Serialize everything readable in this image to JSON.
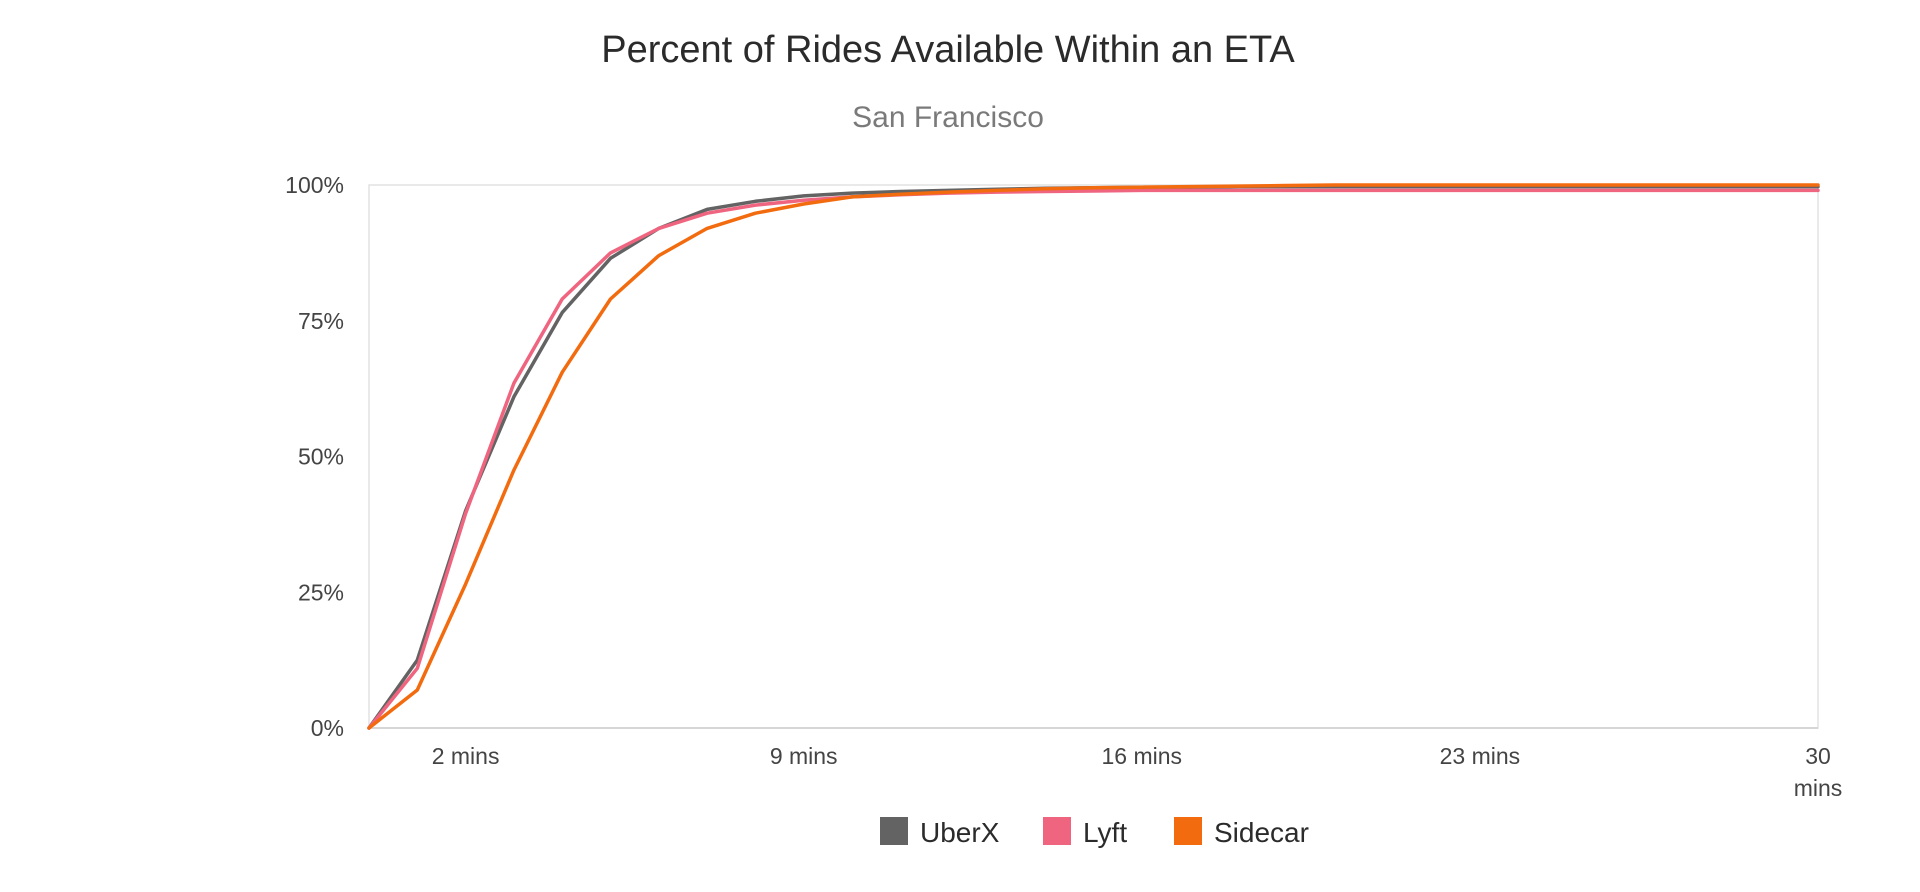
{
  "chart_data": {
    "type": "line",
    "title": "Percent of Rides Available Within an ETA",
    "subtitle": "San Francisco",
    "xlabel": "",
    "ylabel": "",
    "xlim": [
      0,
      30
    ],
    "ylim": [
      0,
      100
    ],
    "x_ticks": [
      {
        "value": 2,
        "label": "2 mins"
      },
      {
        "value": 9,
        "label": "9 mins"
      },
      {
        "value": 16,
        "label": "16 mins"
      },
      {
        "value": 23,
        "label": "23 mins"
      },
      {
        "value": 30,
        "label": "30 mins"
      }
    ],
    "y_ticks": [
      {
        "value": 0,
        "label": "0%"
      },
      {
        "value": 25,
        "label": "25%"
      },
      {
        "value": 50,
        "label": "50%"
      },
      {
        "value": 75,
        "label": "75%"
      },
      {
        "value": 100,
        "label": "100%"
      }
    ],
    "grid": false,
    "legend_position": "bottom",
    "x": [
      0,
      1,
      2,
      3,
      4,
      5,
      6,
      7,
      8,
      9,
      10,
      11,
      12,
      13,
      14,
      15,
      16,
      17,
      18,
      19,
      20,
      21,
      22,
      23,
      24,
      25,
      26,
      27,
      28,
      29,
      30
    ],
    "series": [
      {
        "name": "UberX",
        "color": "#636363",
        "values": [
          0,
          12.5,
          40,
          61,
          76.5,
          86.5,
          92,
          95.5,
          97,
          98,
          98.5,
          98.8,
          99,
          99.2,
          99.4,
          99.5,
          99.6,
          99.6,
          99.7,
          99.7,
          99.7,
          99.7,
          99.7,
          99.7,
          99.7,
          99.7,
          99.7,
          99.7,
          99.7,
          99.7,
          99.7
        ]
      },
      {
        "name": "Lyft",
        "color": "#ef6580",
        "values": [
          0,
          11,
          39.5,
          63.5,
          79,
          87.5,
          92,
          94.8,
          96.3,
          97.2,
          97.8,
          98.2,
          98.5,
          98.7,
          98.8,
          98.9,
          99,
          99,
          99,
          99,
          99,
          99,
          99,
          99,
          99,
          99,
          99,
          99,
          99,
          99,
          99
        ]
      },
      {
        "name": "Sidecar",
        "color": "#f26b0f",
        "values": [
          0,
          7,
          26.5,
          47.5,
          65.5,
          79,
          87,
          92,
          94.8,
          96.5,
          97.8,
          98.3,
          98.7,
          99,
          99.3,
          99.5,
          99.6,
          99.7,
          99.8,
          99.9,
          100,
          100,
          100,
          100,
          100,
          100,
          100,
          100,
          100,
          100,
          100
        ]
      }
    ]
  }
}
